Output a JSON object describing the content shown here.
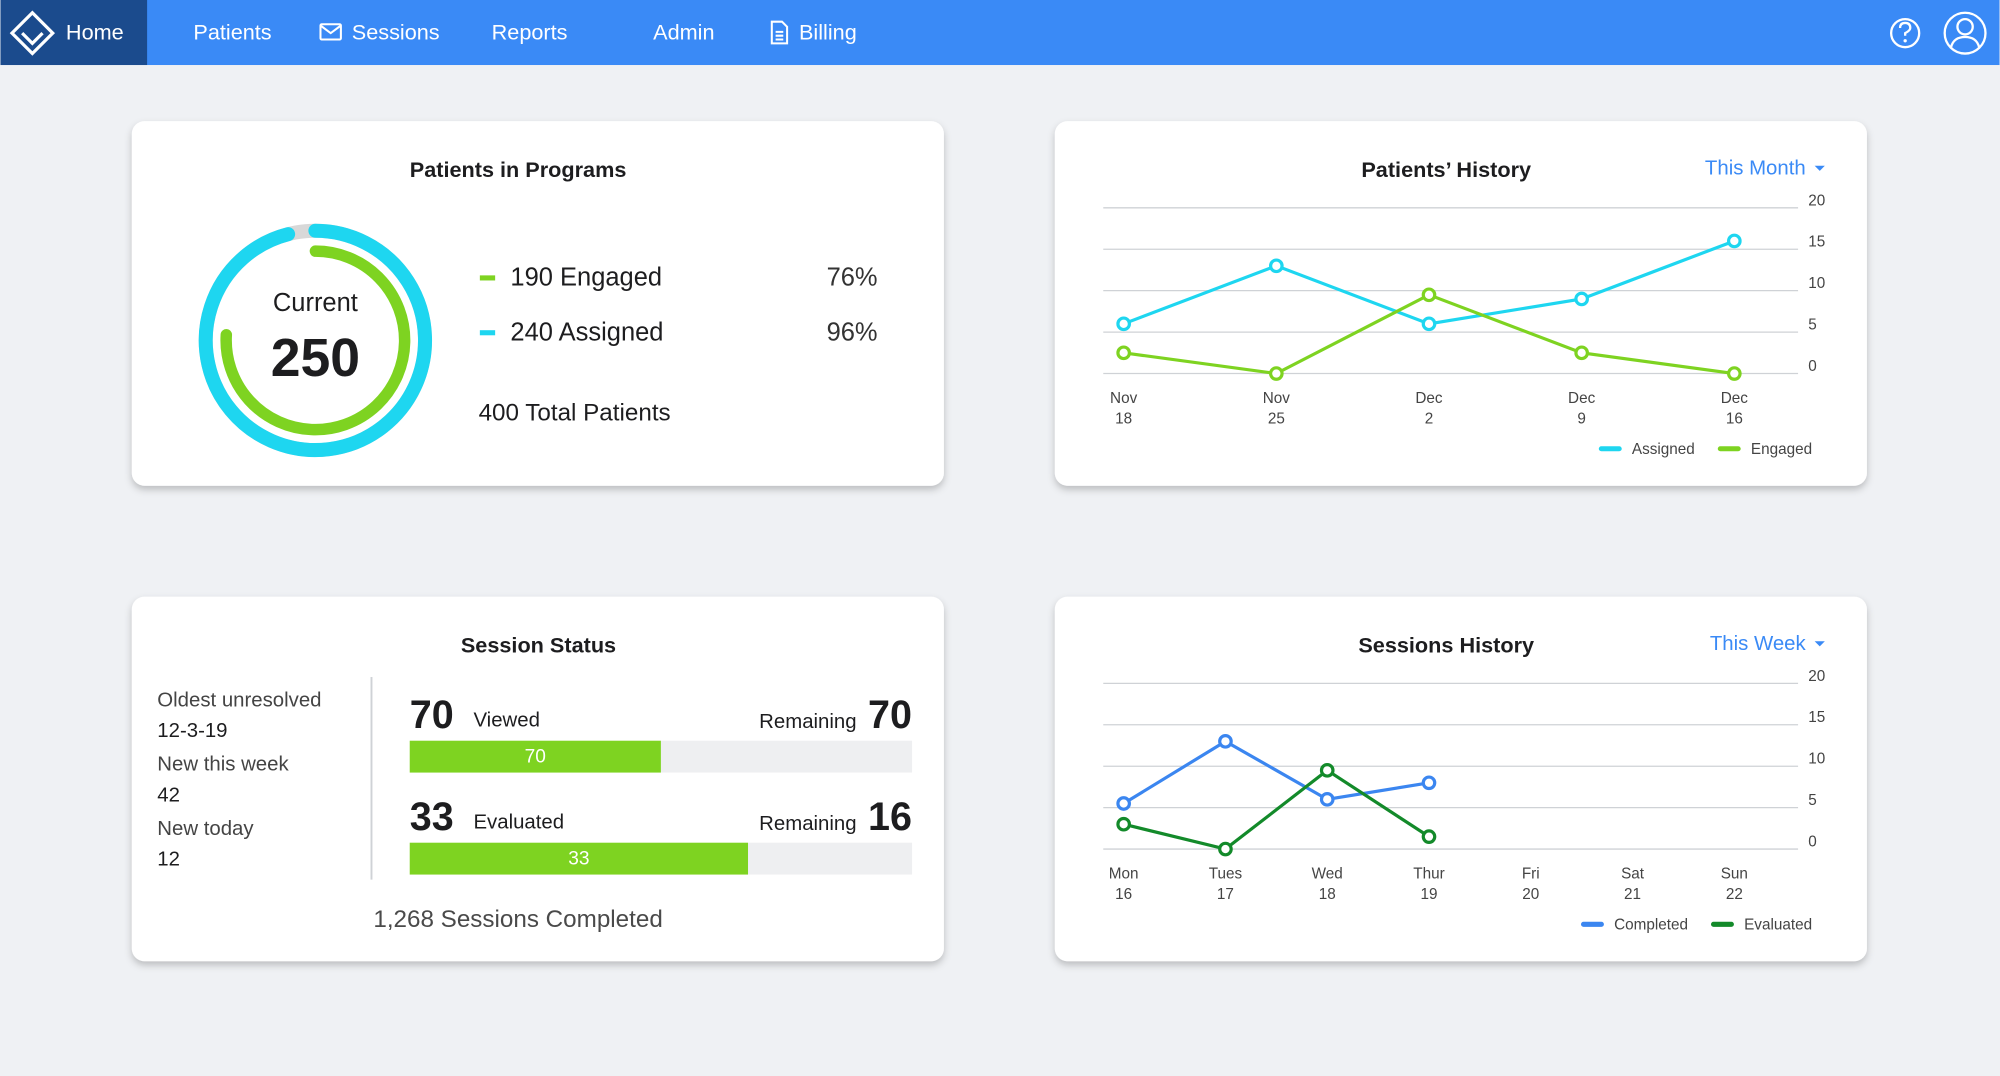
{
  "nav": {
    "items": [
      "Home",
      "Patients",
      "Sessions",
      "Reports",
      "Admin",
      "Billing"
    ]
  },
  "patients_in_programs": {
    "title": "Patients in Programs",
    "center_label": "Current",
    "center_value": 250,
    "legend": [
      {
        "text": "190 Engaged",
        "percent": 76,
        "percent_label": "76%",
        "color": "#7ed321"
      },
      {
        "text": "240 Assigned",
        "percent": 96,
        "percent_label": "96%",
        "color": "#1ed6f0"
      }
    ],
    "total": "400 Total Patients"
  },
  "patients_history": {
    "type": "line",
    "title": "Patients’ History",
    "period": "This Month",
    "categories": [
      "Nov 18",
      "Nov 25",
      "Dec 2",
      "Dec 9",
      "Dec 16"
    ],
    "series": [
      {
        "name": "Assigned",
        "color": "#1ed6f0",
        "values": [
          6,
          13,
          6,
          9,
          16
        ]
      },
      {
        "name": "Engaged",
        "color": "#7ed321",
        "values": [
          2.5,
          0,
          9.5,
          2.5,
          0
        ]
      }
    ],
    "ylim": [
      0,
      20
    ],
    "yticks": [
      0,
      5,
      10,
      15,
      20
    ],
    "grid": true,
    "legend": "bottom-right"
  },
  "session_status": {
    "title": "Session Status",
    "stats": [
      {
        "label": "Oldest unresolved",
        "value": "12-3-19"
      },
      {
        "label": "New this week",
        "value": 42
      },
      {
        "label": "New today",
        "value": 12
      }
    ],
    "bars": [
      {
        "count": 70,
        "label": "Viewed",
        "remaining_label": "Remaining",
        "remaining": 70,
        "color": "#7ed321"
      },
      {
        "count": 33,
        "label": "Evaluated",
        "remaining_label": "Remaining",
        "remaining": 16,
        "color": "#7ed321"
      }
    ],
    "footer": "1,268 Sessions Completed"
  },
  "sessions_history": {
    "type": "line",
    "title": "Sessions History",
    "period": "This Week",
    "categories": [
      "Mon 16",
      "Tues 17",
      "Wed 18",
      "Thur 19",
      "Fri 20",
      "Sat 21",
      "Sun 22"
    ],
    "series": [
      {
        "name": "Completed",
        "color": "#3b86f0",
        "values": [
          5.5,
          13,
          6,
          8,
          null,
          null,
          null
        ]
      },
      {
        "name": "Evaluated",
        "color": "#138a2a",
        "values": [
          3,
          0,
          9.5,
          1.5,
          null,
          null,
          null
        ]
      }
    ],
    "ylim": [
      0,
      20
    ],
    "yticks": [
      0,
      5,
      10,
      15,
      20
    ],
    "grid": true,
    "legend": "bottom-right"
  }
}
